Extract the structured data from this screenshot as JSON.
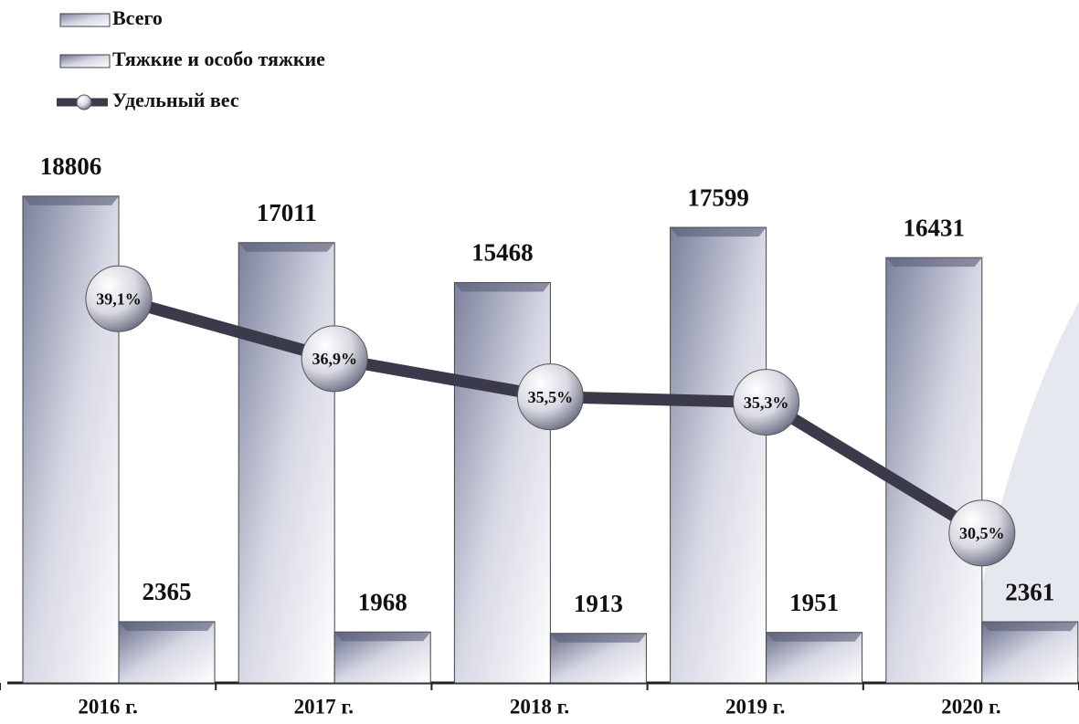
{
  "chart_data": {
    "type": "bar",
    "categories": [
      "2016 г.",
      "2017 г.",
      "2018 г.",
      "2019 г.",
      "2020 г."
    ],
    "series": [
      {
        "name": "Всего",
        "color": "#7c819c",
        "values": [
          18806,
          17011,
          15468,
          17599,
          16431
        ]
      },
      {
        "name": "Тяжкие и особо тяжкие",
        "color": "#6a6f8a",
        "values": [
          2365,
          1968,
          1913,
          1951,
          2361
        ]
      },
      {
        "name": "Удельный вес",
        "color": "#3a3a4a",
        "type": "line",
        "axis": "y2",
        "values": [
          39.1,
          36.9,
          35.5,
          35.3,
          30.5
        ],
        "value_labels": [
          "39,1%",
          "36,9%",
          "35,5%",
          "35,3%",
          "30,5%"
        ]
      }
    ],
    "ylim": [
      0,
      20000
    ],
    "y2lim": [
      25,
      44
    ],
    "legend": "top-left"
  }
}
